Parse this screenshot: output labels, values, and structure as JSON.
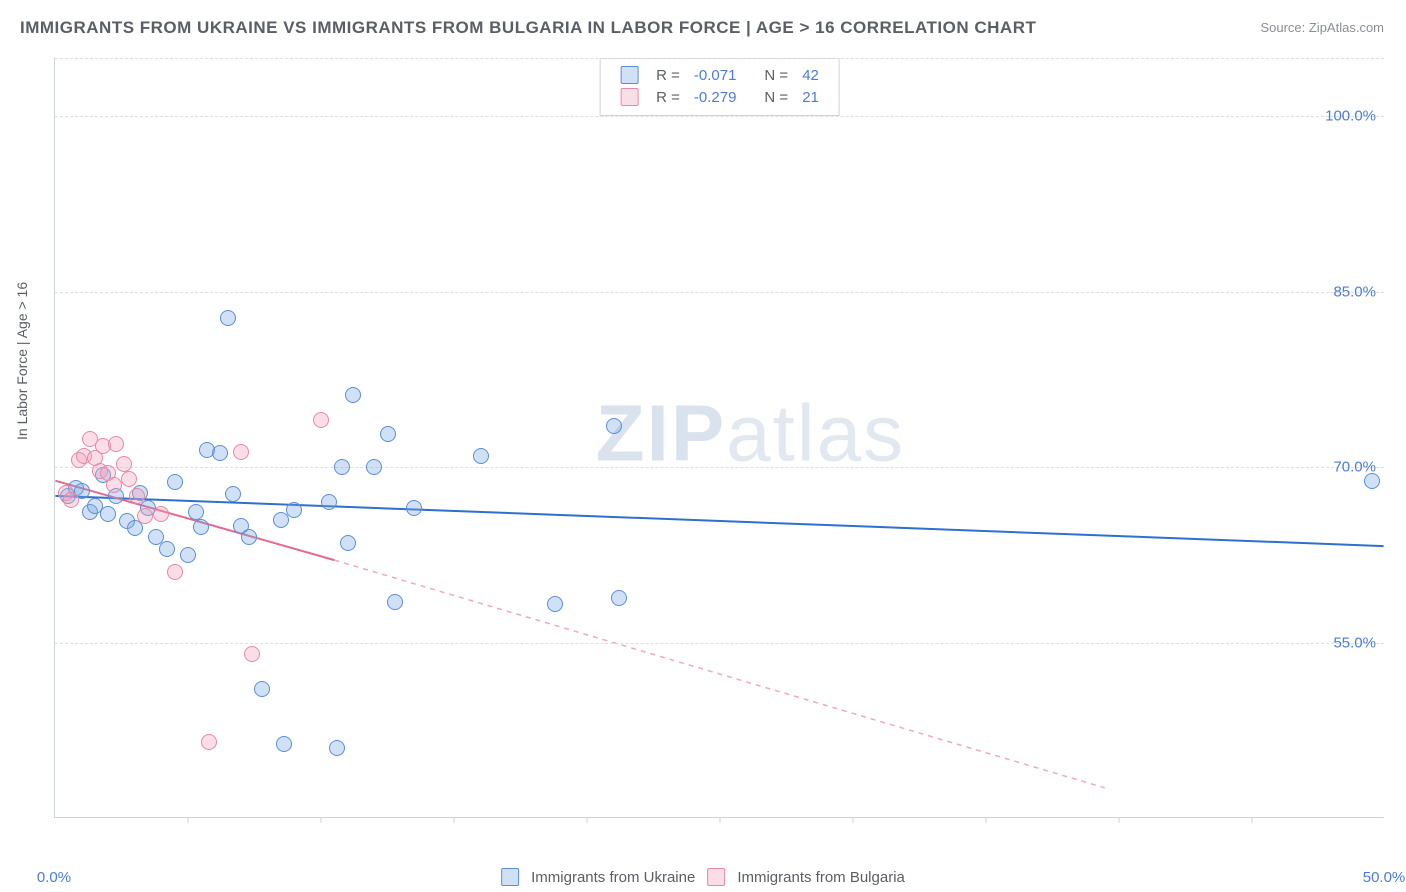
{
  "title": "IMMIGRANTS FROM UKRAINE VS IMMIGRANTS FROM BULGARIA IN LABOR FORCE | AGE > 16 CORRELATION CHART",
  "source": "Source: ZipAtlas.com",
  "watermark_left": "ZIP",
  "watermark_right": "atlas",
  "ylabel": "In Labor Force | Age > 16",
  "chart": {
    "type": "scatter",
    "xlim": [
      0,
      50
    ],
    "ylim": [
      40,
      105
    ],
    "xticks_major": [
      0,
      50
    ],
    "xticks_minor": [
      5,
      10,
      15,
      20,
      25,
      30,
      35,
      40,
      45
    ],
    "xtick_labels": {
      "0": "0.0%",
      "50": "50.0%"
    },
    "yticks": [
      55,
      70,
      85,
      100
    ],
    "ytick_labels": {
      "55": "55.0%",
      "70": "70.0%",
      "85": "85.0%",
      "100": "100.0%"
    },
    "grid_color": "#dcdfe3",
    "axis_color": "#cfd3d8",
    "background_color": "#ffffff",
    "marker_radius": 8,
    "series": [
      {
        "id": "ukraine",
        "label": "Immigrants from Ukraine",
        "color_fill": "rgba(120,165,225,0.35)",
        "color_stroke": "#5b8fd6",
        "r": -0.071,
        "n": 42,
        "trend": {
          "x1": 0,
          "y1": 67.5,
          "x2": 50,
          "y2": 63.2,
          "color": "#2f6fd0",
          "width": 2,
          "dash": "none"
        },
        "points": [
          {
            "x": 0.5,
            "y": 67.5
          },
          {
            "x": 0.8,
            "y": 68.2
          },
          {
            "x": 1.0,
            "y": 68.0
          },
          {
            "x": 1.3,
            "y": 66.2
          },
          {
            "x": 1.5,
            "y": 66.7
          },
          {
            "x": 1.8,
            "y": 69.3
          },
          {
            "x": 2.0,
            "y": 66.0
          },
          {
            "x": 2.3,
            "y": 67.5
          },
          {
            "x": 2.7,
            "y": 65.4
          },
          {
            "x": 3.0,
            "y": 64.8
          },
          {
            "x": 3.2,
            "y": 67.8
          },
          {
            "x": 3.5,
            "y": 66.5
          },
          {
            "x": 3.8,
            "y": 64.0
          },
          {
            "x": 4.2,
            "y": 63.0
          },
          {
            "x": 4.5,
            "y": 68.7
          },
          {
            "x": 5.0,
            "y": 62.5
          },
          {
            "x": 5.3,
            "y": 66.2
          },
          {
            "x": 5.5,
            "y": 64.9
          },
          {
            "x": 5.7,
            "y": 71.5
          },
          {
            "x": 6.2,
            "y": 71.2
          },
          {
            "x": 6.5,
            "y": 82.8
          },
          {
            "x": 6.7,
            "y": 67.7
          },
          {
            "x": 7.0,
            "y": 65.0
          },
          {
            "x": 7.3,
            "y": 64.0
          },
          {
            "x": 7.8,
            "y": 51.0
          },
          {
            "x": 8.5,
            "y": 65.5
          },
          {
            "x": 8.6,
            "y": 46.3
          },
          {
            "x": 9.0,
            "y": 66.3
          },
          {
            "x": 10.3,
            "y": 67.0
          },
          {
            "x": 10.6,
            "y": 46.0
          },
          {
            "x": 10.8,
            "y": 70.0
          },
          {
            "x": 11.0,
            "y": 63.5
          },
          {
            "x": 11.2,
            "y": 76.2
          },
          {
            "x": 12.0,
            "y": 70.0
          },
          {
            "x": 12.5,
            "y": 72.8
          },
          {
            "x": 12.8,
            "y": 58.5
          },
          {
            "x": 13.5,
            "y": 66.5
          },
          {
            "x": 16.0,
            "y": 71.0
          },
          {
            "x": 18.8,
            "y": 58.3
          },
          {
            "x": 21.0,
            "y": 73.5
          },
          {
            "x": 21.2,
            "y": 58.8
          },
          {
            "x": 49.5,
            "y": 68.8
          }
        ]
      },
      {
        "id": "bulgaria",
        "label": "Immigrants from Bulgaria",
        "color_fill": "rgba(240,160,185,0.35)",
        "color_stroke": "#e689a6",
        "r": -0.279,
        "n": 21,
        "trend": {
          "x1": 0,
          "y1": 68.8,
          "x2": 10.5,
          "y2": 62.0,
          "color": "#e46a8d",
          "width": 2,
          "dash": "none"
        },
        "trend_ext": {
          "x1": 10.5,
          "y1": 62.0,
          "x2": 39.5,
          "y2": 42.5,
          "color": "#f2a8bd",
          "width": 1.5,
          "dash": "5,5"
        },
        "points": [
          {
            "x": 0.4,
            "y": 67.8
          },
          {
            "x": 0.6,
            "y": 67.2
          },
          {
            "x": 0.9,
            "y": 70.6
          },
          {
            "x": 1.1,
            "y": 71.0
          },
          {
            "x": 1.3,
            "y": 72.4
          },
          {
            "x": 1.5,
            "y": 70.8
          },
          {
            "x": 1.7,
            "y": 69.7
          },
          {
            "x": 1.8,
            "y": 71.8
          },
          {
            "x": 2.0,
            "y": 69.5
          },
          {
            "x": 2.2,
            "y": 68.5
          },
          {
            "x": 2.3,
            "y": 72.0
          },
          {
            "x": 2.6,
            "y": 70.3
          },
          {
            "x": 2.8,
            "y": 69.0
          },
          {
            "x": 3.1,
            "y": 67.5
          },
          {
            "x": 3.4,
            "y": 65.8
          },
          {
            "x": 4.0,
            "y": 66.0
          },
          {
            "x": 4.5,
            "y": 61.0
          },
          {
            "x": 5.8,
            "y": 46.5
          },
          {
            "x": 7.0,
            "y": 71.3
          },
          {
            "x": 7.4,
            "y": 54.0
          },
          {
            "x": 10.0,
            "y": 74.0
          }
        ]
      }
    ]
  },
  "legend_top": {
    "rows": [
      {
        "swatch": "blue",
        "r_label": "R =",
        "r_val": "-0.071",
        "n_label": "N =",
        "n_val": "42"
      },
      {
        "swatch": "pink",
        "r_label": "R =",
        "r_val": "-0.279",
        "n_label": "N =",
        "n_val": "21"
      }
    ]
  },
  "legend_bottom": {
    "items": [
      {
        "swatch": "blue",
        "label": "Immigrants from Ukraine"
      },
      {
        "swatch": "pink",
        "label": "Immigrants from Bulgaria"
      }
    ]
  }
}
